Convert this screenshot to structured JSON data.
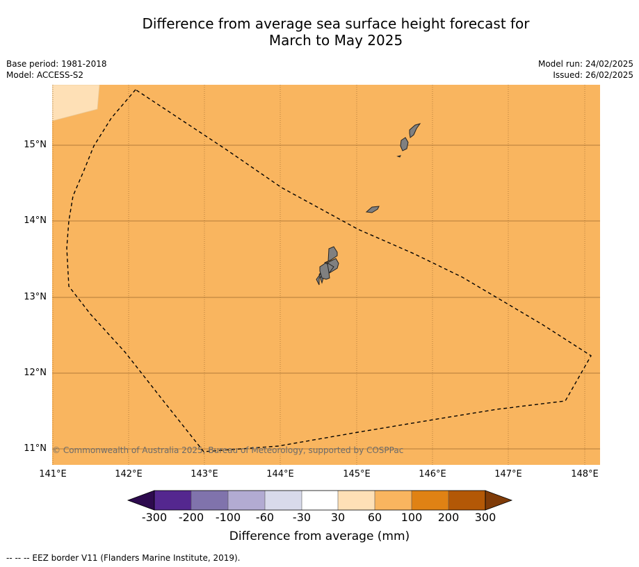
{
  "title_line1": "Difference from average sea surface height forecast for",
  "title_line2": "March to May 2025",
  "meta_left": {
    "base_period": "Base period: 1981-2018",
    "model": "Model: ACCESS-S2"
  },
  "meta_right": {
    "model_run": "Model run: 24/02/2025",
    "issued": "Issued: 26/02/2025"
  },
  "copyright": "© Commonwealth of Australia 2025, Bureau of Meteorology, supported by COSPPac",
  "lat_labels": [
    "15°N",
    "14°N",
    "13°N",
    "12°N",
    "11°N"
  ],
  "lon_labels": [
    "141°E",
    "142°E",
    "143°E",
    "144°E",
    "145°E",
    "146°E",
    "147°E",
    "148°E"
  ],
  "colorbar": {
    "labels": [
      "-300",
      "-200",
      "-100",
      "-60",
      "-30",
      "30",
      "60",
      "100",
      "200",
      "300"
    ],
    "colors": [
      "#2d0a4e",
      "#54278f",
      "#8073ac",
      "#b2abd2",
      "#d8daeb",
      "#ffffff",
      "#fee0b6",
      "#f9b55f",
      "#e08214",
      "#b35806",
      "#7f3b08"
    ],
    "title": "Difference from average (mm)"
  },
  "footer": "--  --  -- EEZ border V11 (Flanders Marine Institute, 2019).",
  "colors": {
    "ocean_fill": "#f9b55f",
    "corner_fill": "#fee0b6",
    "land": "#808080",
    "gridline": "#9b6a2e"
  }
}
